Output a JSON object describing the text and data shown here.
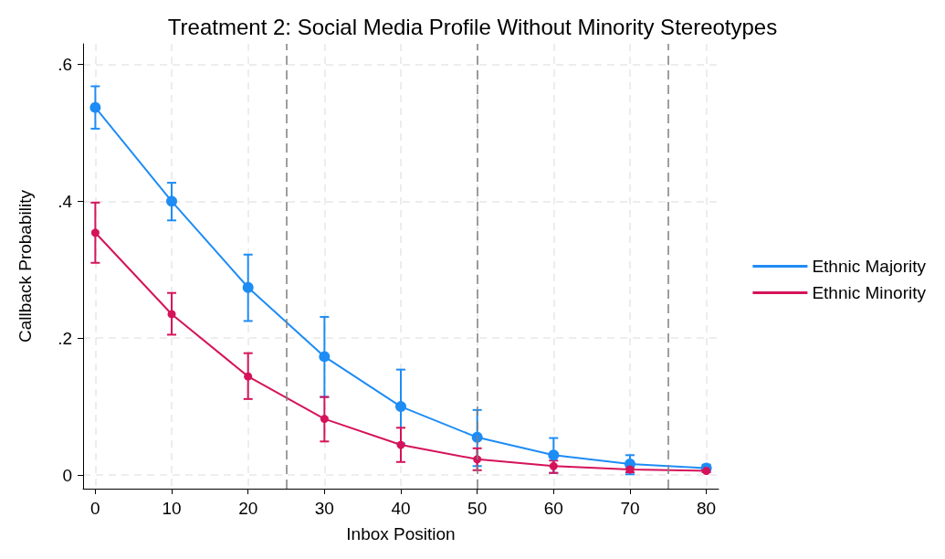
{
  "chart_data": {
    "type": "line",
    "title": "Treatment 2: Social Media Profile Without Minority Stereotypes",
    "xlabel": "Inbox Position",
    "ylabel": "Callback Probability",
    "x": [
      0,
      10,
      20,
      30,
      40,
      50,
      60,
      70,
      80
    ],
    "series": [
      {
        "name": "Ethnic Majority",
        "color": "#1e8cf5",
        "values": [
          0.537,
          0.4,
          0.274,
          0.173,
          0.1,
          0.055,
          0.029,
          0.016,
          0.01
        ],
        "errors": [
          [
            0.506,
            0.568
          ],
          [
            0.372,
            0.427
          ],
          [
            0.225,
            0.322
          ],
          [
            0.114,
            0.231
          ],
          [
            0.046,
            0.154
          ],
          [
            0.013,
            0.095
          ],
          [
            0.003,
            0.054
          ],
          [
            0.001,
            0.029
          ],
          [
            0.007,
            0.015
          ]
        ]
      },
      {
        "name": "Ethnic Minority",
        "color": "#d5135a",
        "values": [
          0.354,
          0.235,
          0.144,
          0.082,
          0.044,
          0.023,
          0.013,
          0.008,
          0.006
        ],
        "errors": [
          [
            0.31,
            0.398
          ],
          [
            0.205,
            0.266
          ],
          [
            0.111,
            0.178
          ],
          [
            0.049,
            0.114
          ],
          [
            0.019,
            0.069
          ],
          [
            0.007,
            0.039
          ],
          [
            0.003,
            0.021
          ],
          [
            0.004,
            0.011
          ],
          [
            0.004,
            0.007
          ]
        ]
      }
    ],
    "xlim": [
      -1.6,
      81.6
    ],
    "xticks": [
      0,
      10,
      20,
      30,
      40,
      50,
      60,
      70,
      80
    ],
    "ylim": [
      -0.02,
      0.63
    ],
    "yticks": [
      {
        "value": 0,
        "label": "0"
      },
      {
        "value": 0.2,
        "label": ".2"
      },
      {
        "value": 0.4,
        "label": ".4"
      },
      {
        "value": 0.6,
        "label": ".6"
      }
    ],
    "ref_lines": [
      {
        "axis": "x",
        "value": 25,
        "color": "#7f7f7f",
        "line_style": "dashed"
      },
      {
        "axis": "x",
        "value": 50,
        "color": "#7f7f7f",
        "line_style": "dashed"
      },
      {
        "axis": "x",
        "value": 75,
        "color": "#7f7f7f",
        "line_style": "dashed"
      }
    ],
    "grid": true,
    "legend": "right",
    "marker": "circle",
    "line_style": "solid"
  }
}
